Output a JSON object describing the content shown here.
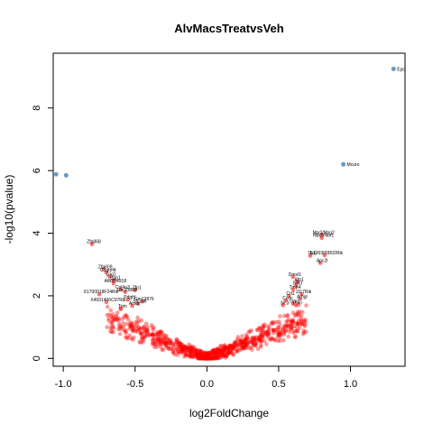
{
  "chart_data": {
    "type": "scatter",
    "title": "AlvMacsTreatvsVeh",
    "xlabel": "log2FoldChange",
    "ylabel": "-log10(pvalue)",
    "xlim": [
      -1.07,
      1.38
    ],
    "ylim": [
      -0.25,
      9.75
    ],
    "x_ticks": [
      -1.0,
      -0.5,
      0.0,
      0.5,
      1.0
    ],
    "x_tick_labels": [
      "-1.0",
      "-0.5",
      "0.0",
      "0.5",
      "1.0"
    ],
    "y_ticks": [
      0,
      2,
      4,
      6,
      8
    ],
    "y_tick_labels": [
      "0",
      "2",
      "4",
      "6",
      "8"
    ],
    "grid": false,
    "legend": "none",
    "colors": {
      "nonsig": "#ff0000",
      "sig": "#4682b4"
    },
    "significant_points": [
      {
        "x": 1.3,
        "y": 9.25,
        "label": "Epc"
      },
      {
        "x": 0.95,
        "y": 6.2,
        "label": "Mcuro"
      },
      {
        "x": -0.98,
        "y": 5.85,
        "label": ""
      },
      {
        "x": -1.05,
        "y": 5.88,
        "label": ""
      }
    ],
    "labeled_points": [
      {
        "x": 0.8,
        "y": 3.95,
        "label": "Nbr2/Nhg2"
      },
      {
        "x": 0.8,
        "y": 3.85,
        "label": "Nbr2/Nbr1"
      },
      {
        "x": 0.72,
        "y": 3.28,
        "label": "Tlx6"
      },
      {
        "x": 0.82,
        "y": 3.3,
        "label": "E130309D02Rik"
      },
      {
        "x": 0.79,
        "y": 3.05,
        "label": "Apc2l"
      },
      {
        "x": 0.6,
        "y": 2.6,
        "label": "Dmxl1"
      },
      {
        "x": 0.63,
        "y": 2.45,
        "label": "Afp1"
      },
      {
        "x": 0.62,
        "y": 2.33,
        "label": "Nkl3"
      },
      {
        "x": 0.6,
        "y": 2.2,
        "label": "Tmb4"
      },
      {
        "x": 0.57,
        "y": 2.0,
        "label": "Crt1"
      },
      {
        "x": 0.66,
        "y": 2.05,
        "label": "1117Rik"
      },
      {
        "x": 0.55,
        "y": 1.85,
        "label": "Ccdc"
      },
      {
        "x": 0.6,
        "y": 1.75,
        "label": "Gm1"
      },
      {
        "x": 0.62,
        "y": 1.7,
        "label": "Plxn"
      },
      {
        "x": 0.65,
        "y": 1.9,
        "label": "Arhgl"
      },
      {
        "x": 0.53,
        "y": 1.7,
        "label": "Slc3"
      },
      {
        "x": -0.8,
        "y": 3.65,
        "label": "Zfp868"
      },
      {
        "x": -0.72,
        "y": 2.85,
        "label": "Zfp609"
      },
      {
        "x": -0.7,
        "y": 2.75,
        "label": "C1qtnf4"
      },
      {
        "x": -0.68,
        "y": 2.62,
        "label": "Lrig1"
      },
      {
        "x": -0.65,
        "y": 2.5,
        "label": "Ppp1"
      },
      {
        "x": -0.65,
        "y": 2.4,
        "label": "AW554918"
      },
      {
        "x": -0.75,
        "y": 2.05,
        "label": "X1700018F24Rik"
      },
      {
        "x": -0.6,
        "y": 2.2,
        "label": "Col4a3"
      },
      {
        "x": -0.57,
        "y": 2.12,
        "label": "Gm10800"
      },
      {
        "x": -0.5,
        "y": 2.18,
        "label": "Zfp1"
      },
      {
        "x": -0.7,
        "y": 1.8,
        "label": "X4931406C07Rik"
      },
      {
        "x": -0.55,
        "y": 1.88,
        "label": "Pdgfrl"
      },
      {
        "x": -0.48,
        "y": 1.75,
        "label": "Slc2a6"
      },
      {
        "x": -0.45,
        "y": 1.82,
        "label": "Gm12876"
      },
      {
        "x": -0.6,
        "y": 1.6,
        "label": "Trim"
      },
      {
        "x": -0.52,
        "y": 1.68,
        "label": "Anxa"
      }
    ]
  }
}
